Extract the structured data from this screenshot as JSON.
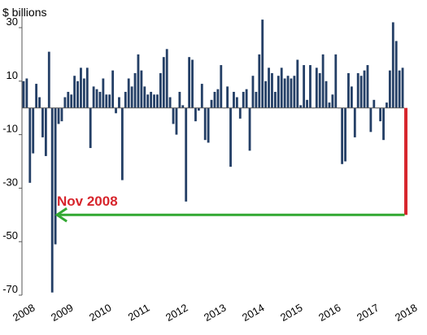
{
  "chart_data": {
    "type": "bar",
    "unit_label": "$ billions",
    "ylim": [
      -70,
      36
    ],
    "yticks": [
      30,
      10,
      -10,
      -30,
      -50,
      -70
    ],
    "grid": false,
    "bar_color": "#243f66",
    "highlight_color": "#d7262d",
    "arrow_color": "#32a832",
    "annotation": {
      "text": "Nov 2008",
      "value": -40,
      "color": "#d7262d"
    },
    "x_start": "2008-01",
    "x_tick_labels": [
      "2008",
      "2009",
      "2010",
      "2011",
      "2012",
      "2013",
      "2014",
      "2015",
      "2016",
      "2017",
      "2018"
    ],
    "series": [
      {
        "values": [
          10,
          11,
          -28,
          -17,
          9,
          4,
          -11,
          -18,
          21,
          -69,
          -51,
          -6,
          -5,
          4,
          6,
          5,
          12,
          10,
          15,
          11,
          15,
          -15,
          8,
          7,
          6,
          11,
          5,
          5,
          14,
          -2,
          4,
          -27,
          6,
          11,
          8,
          13,
          20,
          14,
          8,
          5,
          6,
          5,
          5,
          13,
          19,
          22,
          4,
          -6,
          -10,
          6,
          1,
          -35,
          19,
          18,
          -5,
          -1,
          9,
          -12,
          -13,
          3,
          6,
          7,
          16,
          0,
          8,
          -22,
          6,
          4,
          -4,
          6,
          7,
          -16,
          12,
          6,
          20,
          33,
          10,
          15,
          13,
          6,
          12,
          15,
          11,
          12,
          11,
          12,
          18,
          1,
          16,
          3,
          16,
          0,
          15,
          13,
          20,
          10,
          2,
          5,
          20,
          0,
          -21,
          -20,
          13,
          8,
          -11,
          13,
          12,
          14,
          16,
          -9,
          3,
          0,
          -5,
          -12,
          2,
          14,
          32,
          25,
          14,
          15
        ]
      }
    ]
  }
}
